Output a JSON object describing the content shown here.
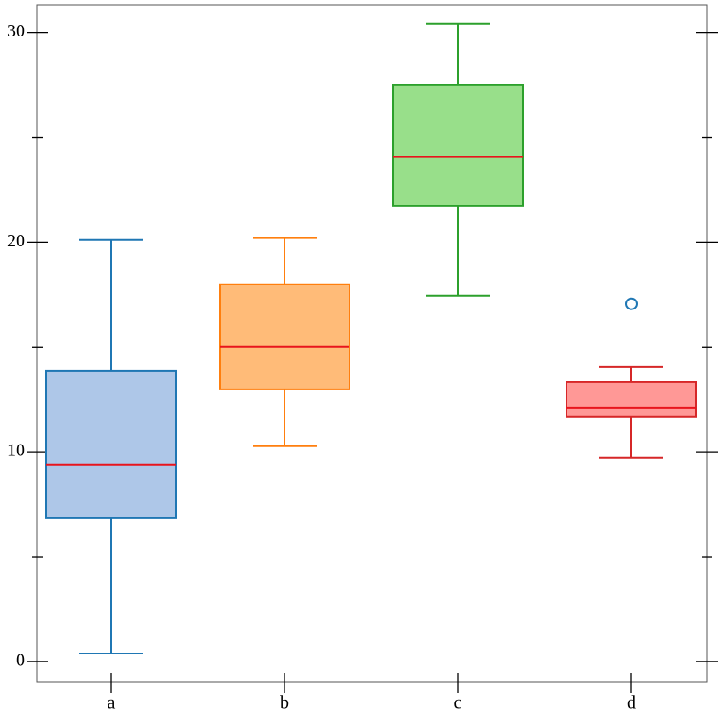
{
  "chart_data": {
    "type": "box",
    "categories": [
      "a",
      "b",
      "c",
      "d"
    ],
    "boxes": [
      {
        "whislo": 0.38,
        "q1": 6.83,
        "med": 9.38,
        "q3": 13.87,
        "whishi": 20.11,
        "fliers": [],
        "color": "#1f77b4",
        "fill": "#aec7e8"
      },
      {
        "whislo": 10.27,
        "q1": 12.98,
        "med": 15.02,
        "q3": 17.99,
        "whishi": 20.2,
        "fliers": [],
        "color": "#ff7f0e",
        "fill": "#ffbb78"
      },
      {
        "whislo": 17.44,
        "q1": 21.72,
        "med": 24.06,
        "q3": 27.49,
        "whishi": 30.42,
        "fliers": [],
        "color": "#2ca02c",
        "fill": "#98df8a"
      },
      {
        "whislo": 9.72,
        "q1": 11.67,
        "med": 12.09,
        "q3": 13.32,
        "whishi": 14.04,
        "fliers": [
          17.06
        ],
        "color": "#d62728",
        "fill": "#ff9896"
      }
    ],
    "median_color": "#e8141c",
    "flier_color": "#1f77b4",
    "ylim": [
      -0.98,
      31.3
    ],
    "yticks": [
      0,
      10,
      20,
      30
    ],
    "yticks_minor": [
      5,
      15,
      25
    ]
  }
}
